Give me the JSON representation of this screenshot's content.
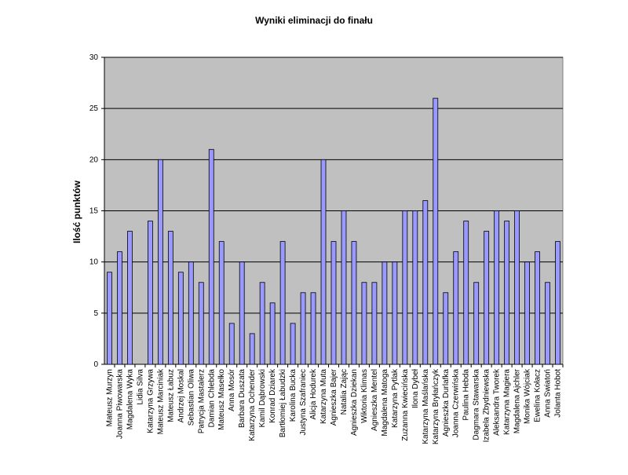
{
  "chart_data": {
    "type": "bar",
    "title": "Wyniki eliminacji do finału",
    "y_label": "Ilość punktów",
    "categories": [
      "Mateusz Murzyn",
      "Joanna Piwowarska",
      "Magdalena Wyka",
      "Lidia Silva",
      "Katarzyna Grzywa",
      "Mateusz Marciniak",
      "Mateusz Łabuz",
      "Andrzej Moskal",
      "Sebastian Oliwa",
      "Patrycja Mastalerz",
      "Damian Chlebda",
      "Mateusz Masełko",
      "Anna Mosór",
      "Barbara Duszata",
      "Katarzyna Ochender",
      "Kamil Dąbrowski",
      "Konrad Dziarek",
      "Bartłomiej Łabudzki",
      "Karolina Bucka",
      "Justyna Szafraniec",
      "Alicja Hodurek",
      "Katarzyna Muta",
      "Agnieszka Bajer",
      "Natalia Zając",
      "Agnieszka Dziekan",
      "Wiktoria Klimas",
      "Agnieszka Mentel",
      "Magdalena Matoga",
      "Katarzyna Pytlak",
      "Zuzanna Kwiecińska",
      "Ilona Dybeł",
      "Katarzyna Maślańska",
      "Katarzyna Bryłańczyk",
      "Agnieszka Durlafka",
      "Joanna Czerwińska",
      "Paulina Hebda",
      "Dagmara Stawarska",
      "Izabela Zbydniewska",
      "Aleksandra Tworek",
      "Katarzyna Magiera",
      "Magdalena Ajchler",
      "Monika Wójciak",
      "Ewelina Kołacz",
      "Anna Swiatoń",
      "Jolanta Hobot"
    ],
    "values": [
      9,
      11,
      13,
      0,
      14,
      20,
      13,
      9,
      10,
      8,
      21,
      12,
      4,
      10,
      3,
      8,
      6,
      12,
      4,
      7,
      7,
      20,
      12,
      15,
      12,
      8,
      8,
      10,
      10,
      15,
      15,
      16,
      26,
      7,
      11,
      14,
      8,
      13,
      15,
      14,
      15,
      10,
      11,
      8,
      12
    ],
    "color": "#9999ff",
    "plot_background": "#c0c0c0",
    "ylim": [
      0,
      30
    ],
    "yticks": [
      0,
      5,
      10,
      15,
      20,
      25,
      30
    ],
    "grid": true
  }
}
